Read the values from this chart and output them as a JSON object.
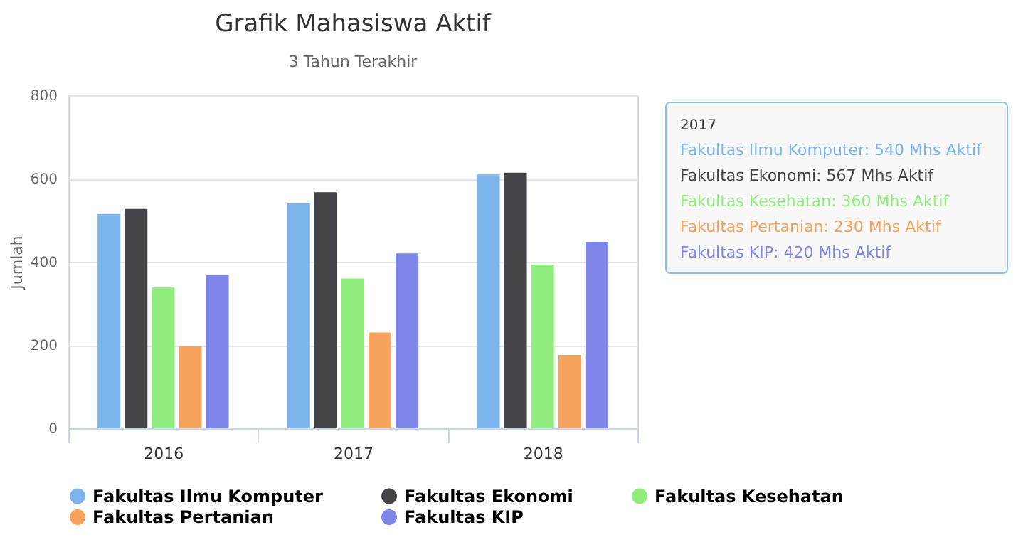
{
  "chart_data": {
    "type": "bar",
    "title": "Grafik Mahasiswa Aktif",
    "subtitle": "3 Tahun Terakhir",
    "ylabel": "Jumlah",
    "categories": [
      "2016",
      "2017",
      "2018"
    ],
    "series": [
      {
        "name": "Fakultas Ilmu Komputer",
        "color": "#7cb5ec",
        "values": [
          515,
          540,
          610
        ]
      },
      {
        "name": "Fakultas Ekonomi",
        "color": "#434348",
        "values": [
          527,
          567,
          614
        ]
      },
      {
        "name": "Fakultas Kesehatan",
        "color": "#90ed7d",
        "values": [
          338,
          360,
          393
        ]
      },
      {
        "name": "Fakultas Pertanian",
        "color": "#f7a35c",
        "values": [
          197,
          230,
          176
        ]
      },
      {
        "name": "Fakultas KIP",
        "color": "#8085e9",
        "values": [
          368,
          420,
          448
        ]
      }
    ],
    "ylim": [
      0,
      800
    ],
    "yticks": [
      0,
      200,
      400,
      600,
      800
    ],
    "grid": "y",
    "legend": "bottom",
    "annotations": [
      "2017",
      "Fakultas Ilmu Komputer: 540 Mhs Aktif",
      "Fakultas Ekonomi: 567 Mhs Aktif",
      "Fakultas Kesehatan: 360 Mhs Aktif",
      "Fakultas Pertanian: 230 Mhs Aktif",
      "Fakultas KIP: 420 Mhs Aktif"
    ]
  }
}
